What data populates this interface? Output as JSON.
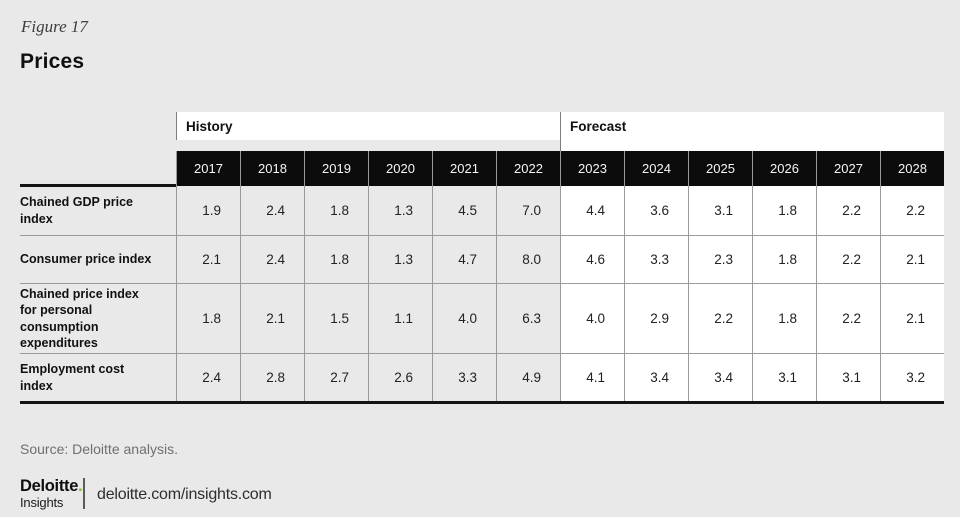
{
  "figure": {
    "label": "Figure 17",
    "title": "Prices"
  },
  "table": {
    "history_label": "History",
    "forecast_label": "Forecast",
    "rows": [
      {
        "label": "Chained GDP price index",
        "values": [
          "1.9",
          "2.4",
          "1.8",
          "1.3",
          "4.5",
          "7.0",
          "4.4",
          "3.6",
          "3.1",
          "1.8",
          "2.2",
          "2.2"
        ]
      },
      {
        "label": "Consumer price index",
        "values": [
          "2.1",
          "2.4",
          "1.8",
          "1.3",
          "4.7",
          "8.0",
          "4.6",
          "3.3",
          "2.3",
          "1.8",
          "2.2",
          "2.1"
        ]
      },
      {
        "label": "Chained price index for personal consumption expenditures",
        "values": [
          "1.8",
          "2.1",
          "1.5",
          "1.1",
          "4.0",
          "6.3",
          "4.0",
          "2.9",
          "2.2",
          "1.8",
          "2.2",
          "2.1"
        ]
      },
      {
        "label": "Employment cost index",
        "values": [
          "2.4",
          "2.8",
          "2.7",
          "2.6",
          "3.3",
          "4.9",
          "4.1",
          "3.4",
          "3.4",
          "3.1",
          "3.1",
          "3.2"
        ]
      }
    ]
  },
  "chart_data": {
    "type": "table",
    "title": "Prices",
    "categories": [
      "2017",
      "2018",
      "2019",
      "2020",
      "2021",
      "2022",
      "2023",
      "2024",
      "2025",
      "2026",
      "2027",
      "2028"
    ],
    "column_groups": [
      {
        "label": "History",
        "categories": [
          "2017",
          "2018",
          "2019",
          "2020",
          "2021",
          "2022"
        ]
      },
      {
        "label": "Forecast",
        "categories": [
          "2023",
          "2024",
          "2025",
          "2026",
          "2027",
          "2028"
        ]
      }
    ],
    "series": [
      {
        "name": "Chained GDP price index",
        "values": [
          1.9,
          2.4,
          1.8,
          1.3,
          4.5,
          7.0,
          4.4,
          3.6,
          3.1,
          1.8,
          2.2,
          2.2
        ]
      },
      {
        "name": "Consumer price index",
        "values": [
          2.1,
          2.4,
          1.8,
          1.3,
          4.7,
          8.0,
          4.6,
          3.3,
          2.3,
          1.8,
          2.2,
          2.1
        ]
      },
      {
        "name": "Chained price index for personal consumption expenditures",
        "values": [
          1.8,
          2.1,
          1.5,
          1.1,
          4.0,
          6.3,
          4.0,
          2.9,
          2.2,
          1.8,
          2.2,
          2.1
        ]
      },
      {
        "name": "Employment cost index",
        "values": [
          2.4,
          2.8,
          2.7,
          2.6,
          3.3,
          4.9,
          4.1,
          3.4,
          3.4,
          3.1,
          3.1,
          3.2
        ]
      }
    ]
  },
  "footer": {
    "source": "Source: Deloitte analysis.",
    "logo_primary": "Deloitte",
    "logo_dot": ".",
    "logo_secondary": "Insights",
    "logo_url": "deloitte.com/insights.com",
    "brand_green": "#86BC25"
  }
}
